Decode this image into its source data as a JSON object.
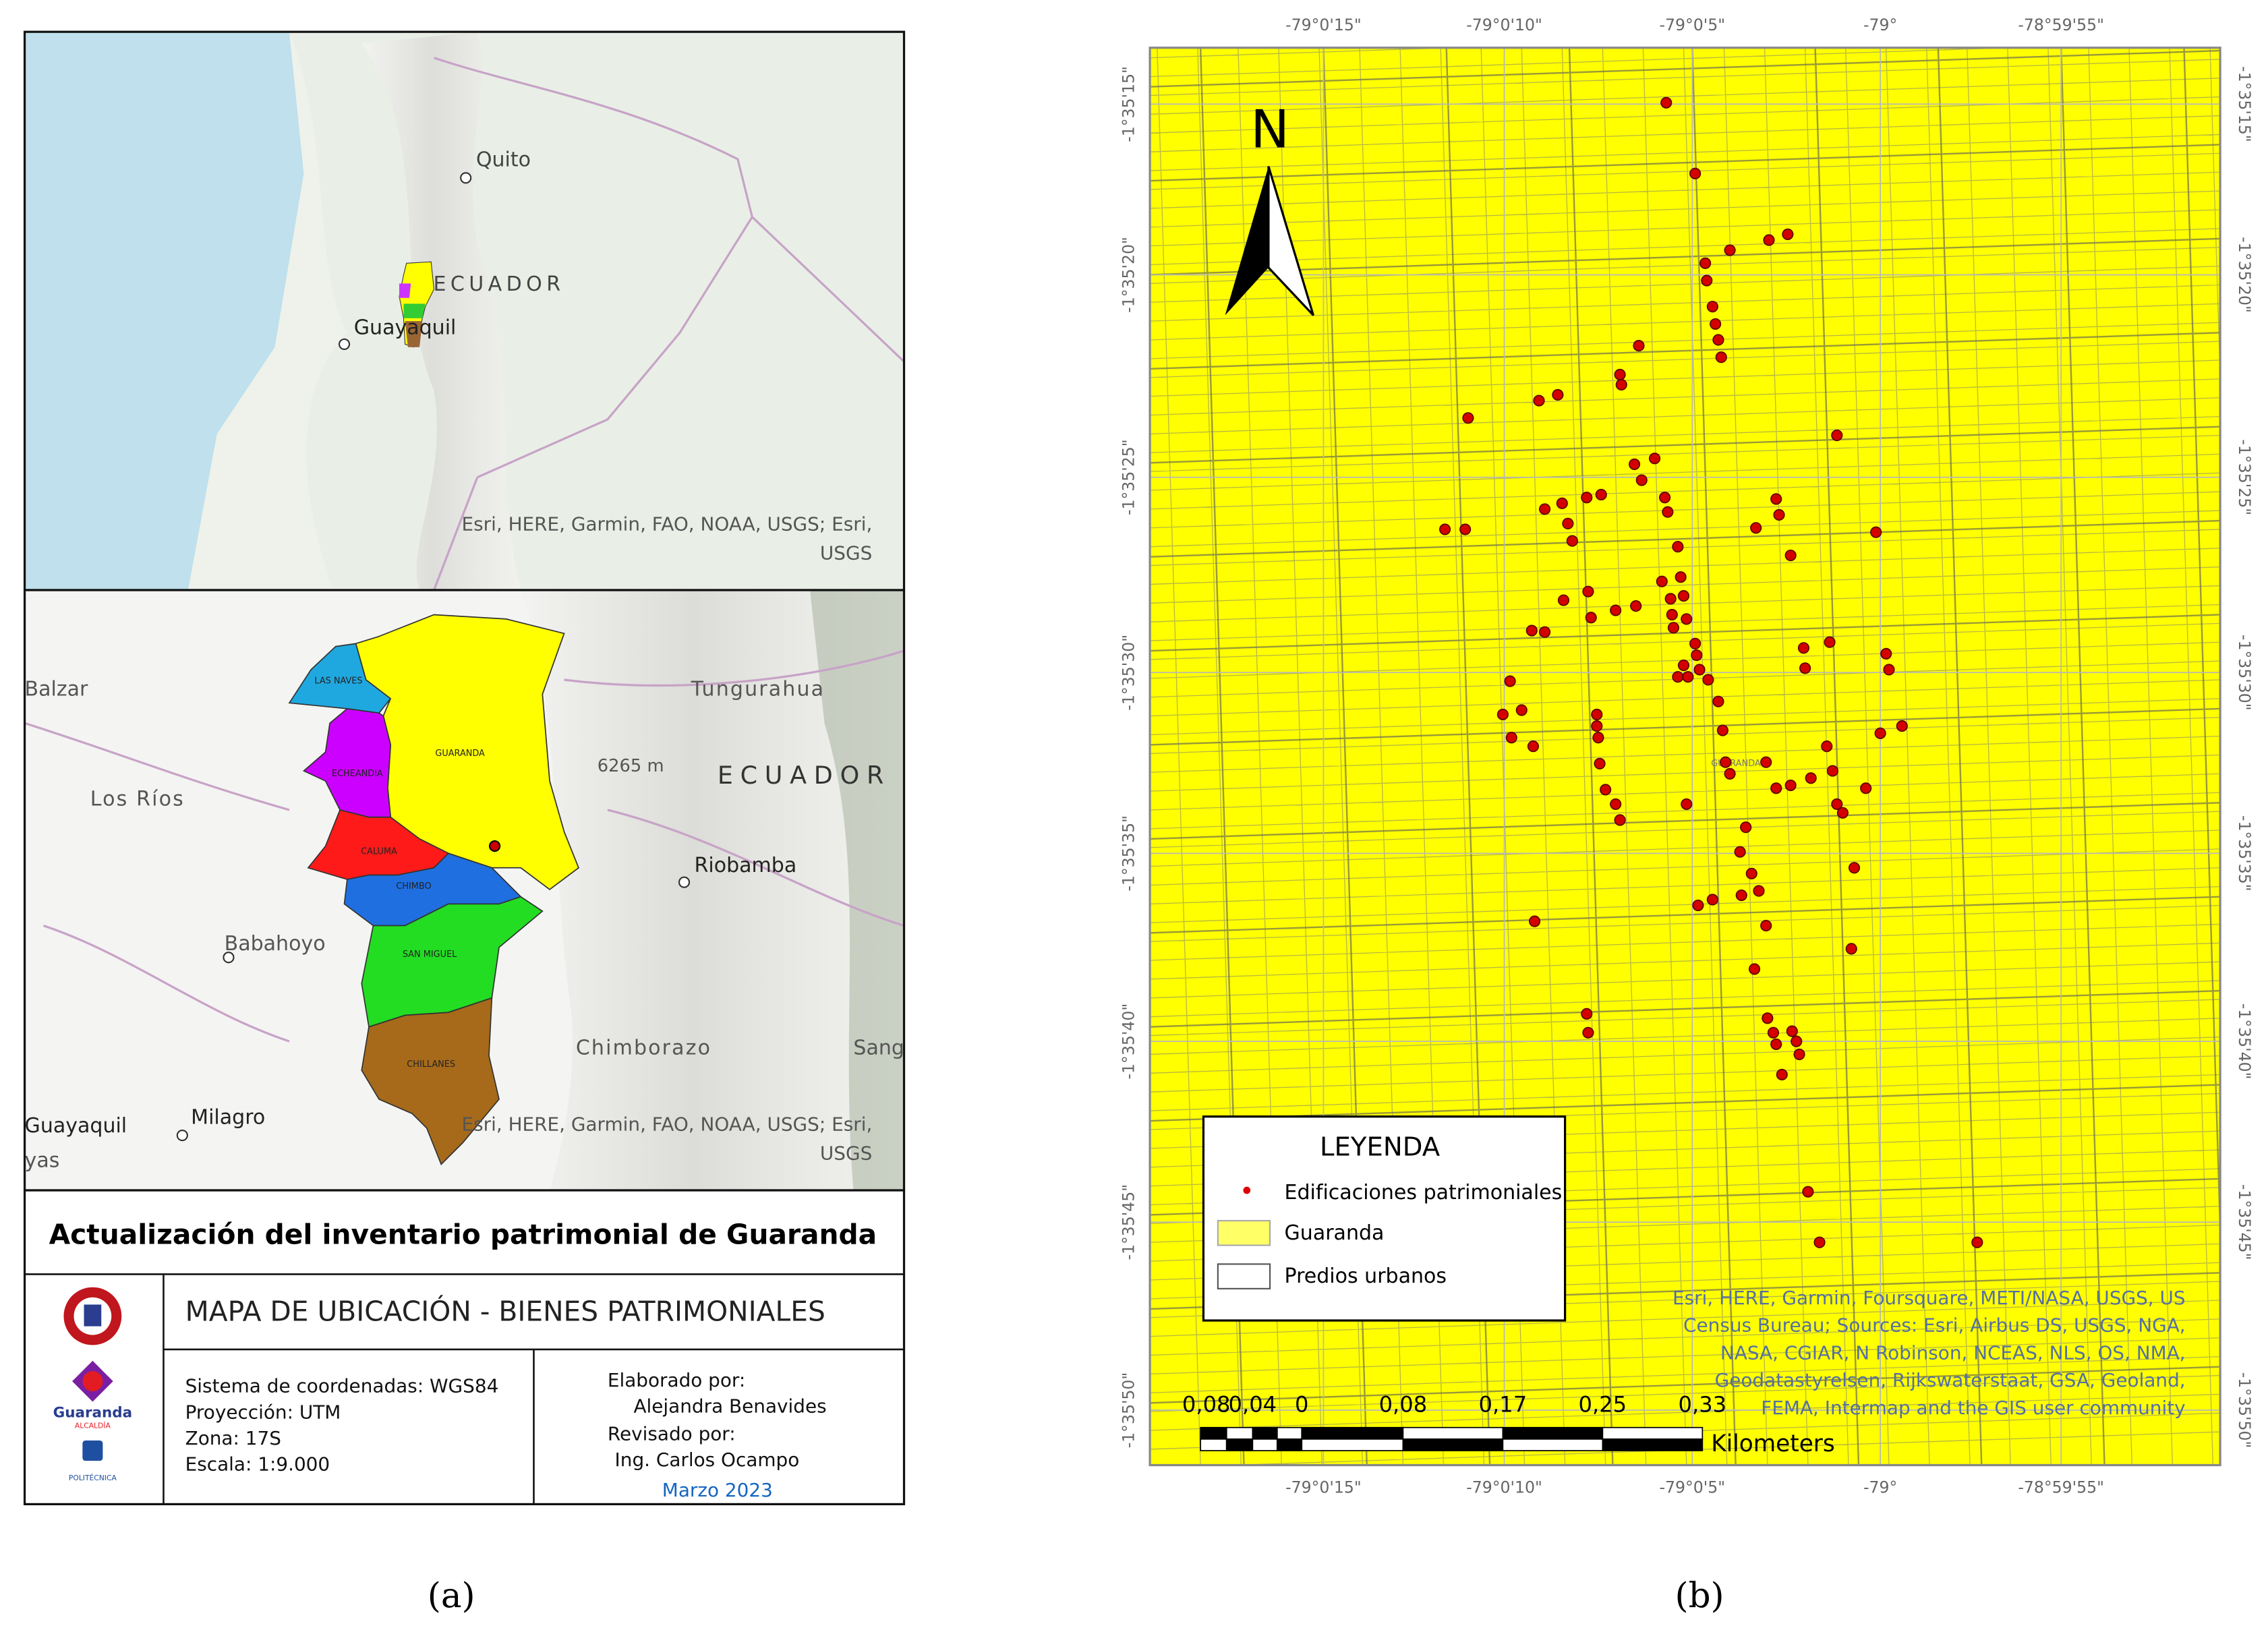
{
  "panel_a": {
    "overview_map": {
      "places": [
        "Quito",
        "ECUADOR",
        "Guayaquil"
      ],
      "attribution": [
        "Esri, HERE, Garmin, FAO, NOAA, USGS; Esri,",
        "USGS"
      ]
    },
    "detail_map": {
      "places": [
        "Balzar",
        "Tungurahua",
        "6265 m",
        "ECUADOR",
        "Los Ríos",
        "Riobamba",
        "Babahoyo",
        "Chimborazo",
        "Sanga",
        "Guayaquil",
        "Milagro",
        "yas"
      ],
      "cantons": [
        "LAS NAVES",
        "GUARANDA",
        "ECHEANDIA",
        "CALUMA",
        "CHIMBO",
        "SAN MIGUEL",
        "CHILLANES"
      ],
      "attribution": [
        "Esri, HERE, Garmin, FAO, NOAA, USGS; Esri,",
        "USGS"
      ]
    },
    "title": "Actualización del inventario patrimonial de Guaranda",
    "subtitle": "MAPA DE UBICACIÓN - BIENES PATRIMONIALES",
    "logo_texts": [
      "Guaranda",
      "ALCALDÍA",
      "POLITÉCNICA"
    ],
    "projection_info": [
      "Sistema de coordenadas: WGS84",
      "Proyección: UTM",
      "Zona: 17S",
      "Escala: 1:9.000"
    ],
    "credits": [
      "Elaborado por:",
      "Alejandra Benavides",
      "Revisado por:",
      "Ing. Carlos Ocampo"
    ],
    "date": "Marzo 2023"
  },
  "panel_b": {
    "north": "N",
    "longitudes": [
      "-79°0'15\"",
      "-79°0'10\"",
      "-79°0'5\"",
      "-79°",
      "-78°59'55\""
    ],
    "latitudes": [
      "-1°35'15\"",
      "-1°35'20\"",
      "-1°35'25\"",
      "-1°35'30\"",
      "-1°35'35\"",
      "-1°35'40\"",
      "-1°35'45\"",
      "-1°35'50\""
    ],
    "map_label": "GUARANDA",
    "legend": {
      "title": "LEYENDA",
      "items": [
        "Edificaciones patrimoniales",
        "Guaranda",
        "Predios urbanos"
      ]
    },
    "attribution": [
      "Esri, HERE, Garmin, Foursquare, METI/NASA, USGS, US",
      "Census Bureau; Sources: Esri, Airbus DS, USGS, NGA,",
      "NASA, CGIAR, N Robinson, NCEAS, NLS, OS, NMA,",
      "Geodatastyrelsen, Rijkswaterstaat, GSA, Geoland,",
      "FEMA, Intermap and the GIS user community"
    ],
    "scale_bar": {
      "labels": [
        "0,08",
        "0,04",
        "0",
        "0,08",
        "0,17",
        "0,25",
        "0,33"
      ],
      "unit": "Kilometers"
    }
  },
  "captions": [
    "(a)",
    "(b)"
  ]
}
